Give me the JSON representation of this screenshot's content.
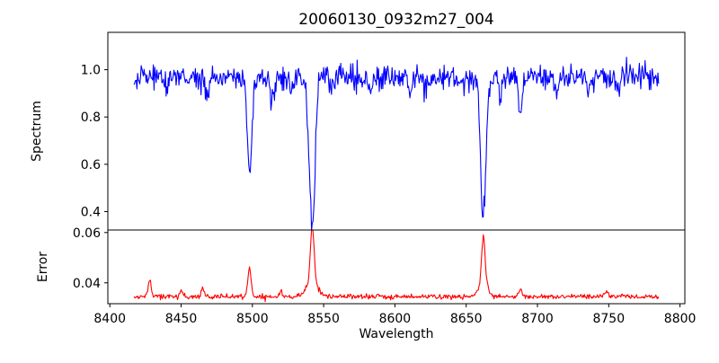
{
  "figure": {
    "background": "#ffffff",
    "axis_color": "#000000"
  },
  "chart_data": [
    {
      "type": "line",
      "panel": "spectrum",
      "title": "20060130_0932m27_004",
      "ylabel": "Spectrum",
      "line_color": "#0000ff",
      "legend": "none",
      "grid": false,
      "xlim": [
        8398.6,
        8803.4
      ],
      "ylim": [
        0.322,
        1.158
      ],
      "yticks": [
        0.4,
        0.6,
        0.8,
        1.0
      ],
      "ytick_labels": [
        "0.4",
        "0.6",
        "0.8",
        "1.0"
      ],
      "x_data_range": [
        8417,
        8785
      ],
      "x_step": 0.5,
      "continuum": 0.97,
      "noise_sigma": 0.026,
      "seed": 42,
      "absorption_lines": [
        {
          "center": 8498,
          "depth": 0.42,
          "sigma": 1.6
        },
        {
          "center": 8542,
          "depth": 0.62,
          "sigma": 2.1
        },
        {
          "center": 8662,
          "depth": 0.59,
          "sigma": 1.9
        },
        {
          "center": 8688,
          "depth": 0.15,
          "sigma": 1.6
        },
        {
          "center": 8440,
          "depth": 0.06,
          "sigma": 1.2
        },
        {
          "center": 8468,
          "depth": 0.08,
          "sigma": 1.4
        },
        {
          "center": 8514,
          "depth": 0.09,
          "sigma": 1.5
        },
        {
          "center": 8527,
          "depth": 0.05,
          "sigma": 1.2
        },
        {
          "center": 8556,
          "depth": 0.05,
          "sigma": 1.2
        },
        {
          "center": 8583,
          "depth": 0.06,
          "sigma": 1.2
        },
        {
          "center": 8611,
          "depth": 0.07,
          "sigma": 1.3
        },
        {
          "center": 8622,
          "depth": 0.06,
          "sigma": 1.3
        },
        {
          "center": 8648,
          "depth": 0.05,
          "sigma": 1.2
        },
        {
          "center": 8674,
          "depth": 0.08,
          "sigma": 1.4
        },
        {
          "center": 8713,
          "depth": 0.05,
          "sigma": 1.2
        },
        {
          "center": 8736,
          "depth": 0.05,
          "sigma": 1.2
        },
        {
          "center": 8757,
          "depth": 0.06,
          "sigma": 1.3
        }
      ]
    },
    {
      "type": "line",
      "panel": "error",
      "ylabel": "Error",
      "xlabel": "Wavelength",
      "line_color": "#ff0000",
      "legend": "none",
      "grid": false,
      "xlim": [
        8398.6,
        8803.4
      ],
      "ylim": [
        0.0317,
        0.061
      ],
      "yticks": [
        0.04,
        0.06
      ],
      "ytick_labels": [
        "0.04",
        "0.06"
      ],
      "xticks": [
        8400,
        8450,
        8500,
        8550,
        8600,
        8650,
        8700,
        8750,
        8800
      ],
      "xtick_labels": [
        "8400",
        "8450",
        "8500",
        "8550",
        "8600",
        "8650",
        "8700",
        "8750",
        "8800"
      ],
      "x_data_range": [
        8417,
        8785
      ],
      "x_step": 0.5,
      "baseline": 0.0345,
      "noise_sigma": 0.0005,
      "seed": 7,
      "emission_peaks": [
        {
          "center": 8428,
          "height": 0.0068,
          "sigma": 1.0
        },
        {
          "center": 8450,
          "height": 0.0028,
          "sigma": 0.9
        },
        {
          "center": 8465,
          "height": 0.0035,
          "sigma": 1.0
        },
        {
          "center": 8498,
          "height": 0.0112,
          "sigma": 1.2
        },
        {
          "center": 8520,
          "height": 0.002,
          "sigma": 1.0
        },
        {
          "center": 8542,
          "height": 0.0225,
          "sigma": 1.3
        },
        {
          "center": 8542,
          "height": 0.0055,
          "sigma": 4.0
        },
        {
          "center": 8662,
          "height": 0.019,
          "sigma": 1.2
        },
        {
          "center": 8662,
          "height": 0.005,
          "sigma": 3.5
        },
        {
          "center": 8688,
          "height": 0.0028,
          "sigma": 1.2
        },
        {
          "center": 8748,
          "height": 0.002,
          "sigma": 1.5
        }
      ]
    }
  ]
}
